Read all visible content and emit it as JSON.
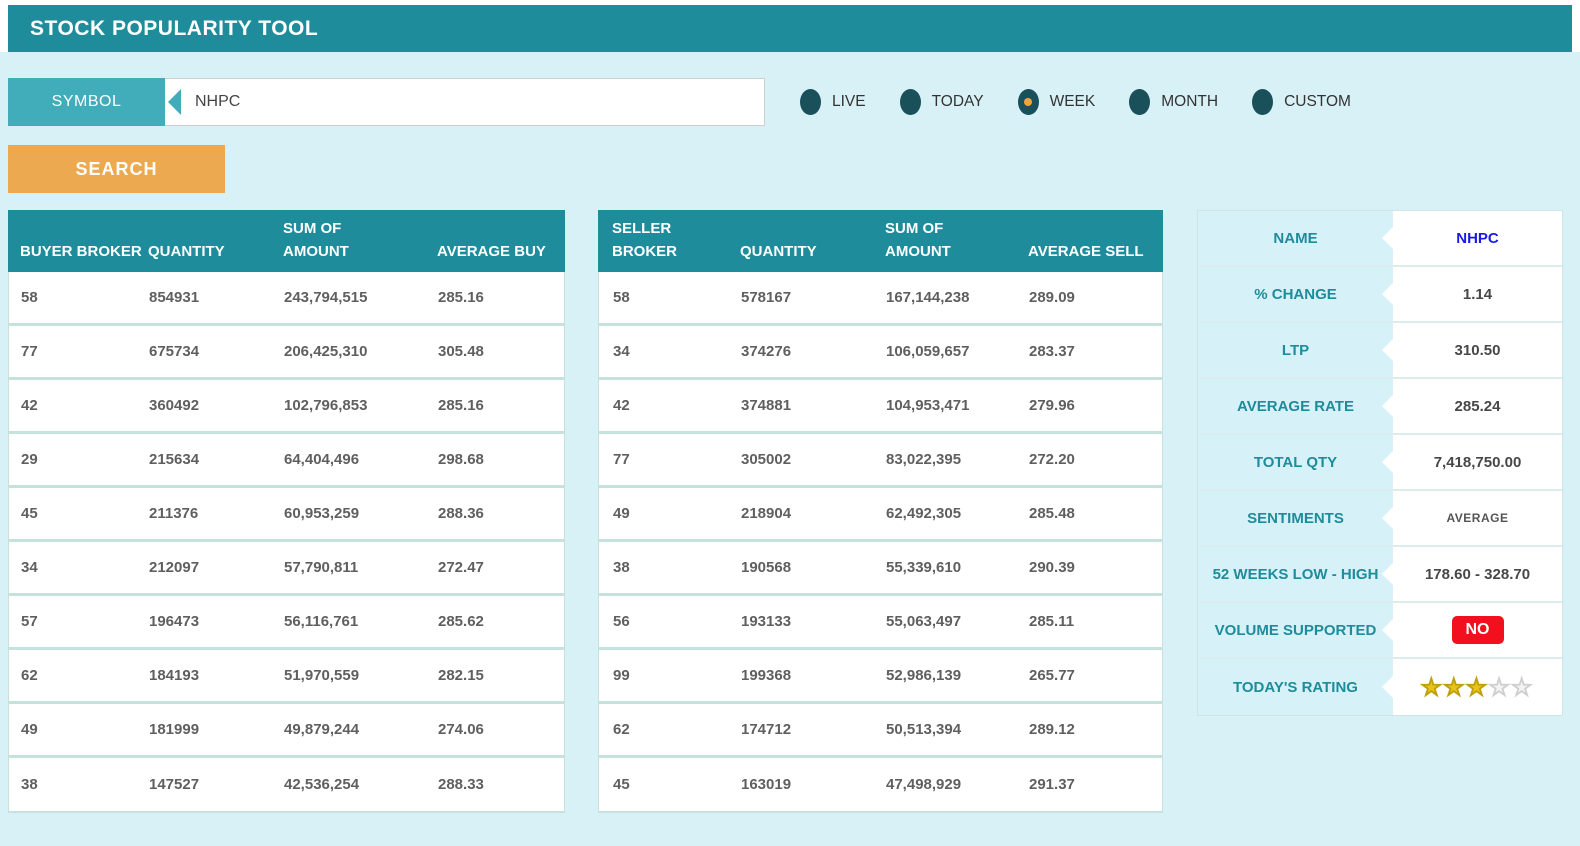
{
  "app": {
    "title": "STOCK POPULARITY TOOL"
  },
  "search": {
    "symbol_label": "SYMBOL",
    "symbol_value": "NHPC",
    "button_label": "SEARCH"
  },
  "periods": {
    "selected": "WEEK",
    "options": [
      "LIVE",
      "TODAY",
      "WEEK",
      "MONTH",
      "CUSTOM"
    ]
  },
  "buyer_table": {
    "headers": [
      "BUYER BROKER",
      "QUANTITY",
      "SUM OF\nAMOUNT",
      "AVERAGE BUY"
    ],
    "rows": [
      [
        "58",
        "854931",
        "243,794,515",
        "285.16"
      ],
      [
        "77",
        "675734",
        "206,425,310",
        "305.48"
      ],
      [
        "42",
        "360492",
        "102,796,853",
        "285.16"
      ],
      [
        "29",
        "215634",
        "64,404,496",
        "298.68"
      ],
      [
        "45",
        "211376",
        "60,953,259",
        "288.36"
      ],
      [
        "34",
        "212097",
        "57,790,811",
        "272.47"
      ],
      [
        "57",
        "196473",
        "56,116,761",
        "285.62"
      ],
      [
        "62",
        "184193",
        "51,970,559",
        "282.15"
      ],
      [
        "49",
        "181999",
        "49,879,244",
        "274.06"
      ],
      [
        "38",
        "147527",
        "42,536,254",
        "288.33"
      ]
    ]
  },
  "seller_table": {
    "headers": [
      "SELLER\nBROKER",
      "QUANTITY",
      "SUM OF\nAMOUNT",
      "AVERAGE SELL"
    ],
    "rows": [
      [
        "58",
        "578167",
        "167,144,238",
        "289.09"
      ],
      [
        "34",
        "374276",
        "106,059,657",
        "283.37"
      ],
      [
        "42",
        "374881",
        "104,953,471",
        "279.96"
      ],
      [
        "77",
        "305002",
        "83,022,395",
        "272.20"
      ],
      [
        "49",
        "218904",
        "62,492,305",
        "285.48"
      ],
      [
        "38",
        "190568",
        "55,339,610",
        "290.39"
      ],
      [
        "56",
        "193133",
        "55,063,497",
        "285.11"
      ],
      [
        "99",
        "199368",
        "52,986,139",
        "265.77"
      ],
      [
        "62",
        "174712",
        "50,513,394",
        "289.12"
      ],
      [
        "45",
        "163019",
        "47,498,929",
        "291.37"
      ]
    ]
  },
  "summary": {
    "name_label": "NAME",
    "name_value": "NHPC",
    "change_label": "% CHANGE",
    "change_value": "1.14",
    "ltp_label": "LTP",
    "ltp_value": "310.50",
    "avg_rate_label": "AVERAGE RATE",
    "avg_rate_value": "285.24",
    "total_qty_label": "TOTAL QTY",
    "total_qty_value": "7,418,750.00",
    "sentiments_label": "SENTIMENTS",
    "sentiments_value": "AVERAGE",
    "weeks52_label": "52 WEEKS LOW - HIGH",
    "weeks52_value": "178.60 - 328.70",
    "volume_label": "VOLUME SUPPORTED",
    "volume_value": "NO",
    "rating_label": "TODAY'S RATING",
    "rating_value": "3 of 5",
    "rating_stars_filled": "★★★",
    "rating_stars_empty": "★★"
  },
  "colors": {
    "header_teal": "#1E8C9A",
    "label_teal": "#41ACBA",
    "radio_dark_teal": "#1A505A",
    "radio_selected_orange": "#F0A43C",
    "search_orange": "#ECA94F",
    "badge_red": "#F2101E",
    "name_blue": "#1A1AE8",
    "star_gold": "#E8C417",
    "page_background": "#D8F1F7"
  }
}
